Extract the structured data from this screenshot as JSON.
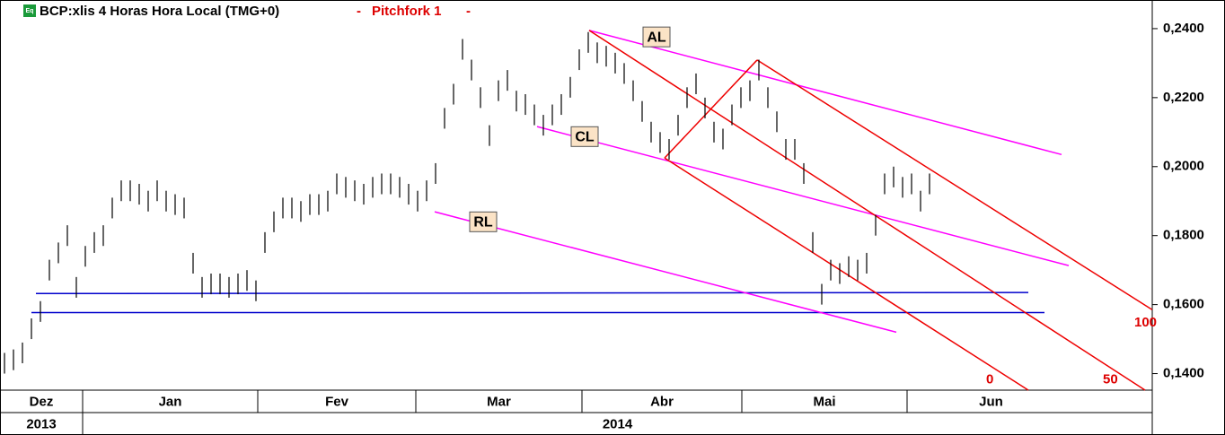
{
  "chart_data": {
    "type": "hilo",
    "icon": "Eq",
    "title": "BCP:xlis 4 Horas Hora Local (TMG+0)",
    "separator": "-",
    "study": "Pitchfork 1",
    "color": "#000000",
    "xlim": [
      0,
      1283
    ],
    "ylim": [
      0.1352,
      0.2483
    ],
    "yticks": [
      {
        "value": 0.14,
        "label": "0,1400"
      },
      {
        "value": 0.16,
        "label": "0,1600"
      },
      {
        "value": 0.18,
        "label": "0,1800"
      },
      {
        "value": 0.2,
        "label": "0,2000"
      },
      {
        "value": 0.22,
        "label": "0,2200"
      },
      {
        "value": 0.24,
        "label": "0,2400"
      }
    ],
    "months": [
      {
        "label": "Dez",
        "start": 0,
        "end": 92
      },
      {
        "label": "Jan",
        "start": 92,
        "end": 287
      },
      {
        "label": "Fev",
        "start": 287,
        "end": 463
      },
      {
        "label": "Mar",
        "start": 463,
        "end": 648
      },
      {
        "label": "Abr",
        "start": 648,
        "end": 826
      },
      {
        "label": "Mai",
        "start": 826,
        "end": 1010
      },
      {
        "label": "Jun",
        "start": 1010,
        "end": 1197
      }
    ],
    "years": [
      {
        "label": "2013",
        "start": 0,
        "end": 92
      },
      {
        "label": "2014",
        "start": 92,
        "end": 1283
      }
    ],
    "x": [
      5,
      15,
      25,
      35,
      45,
      55,
      65,
      75,
      85,
      95,
      105,
      115,
      125,
      135,
      145,
      155,
      165,
      175,
      185,
      195,
      205,
      215,
      225,
      235,
      245,
      255,
      265,
      275,
      285,
      295,
      305,
      315,
      325,
      335,
      345,
      355,
      365,
      375,
      385,
      395,
      405,
      415,
      425,
      435,
      445,
      455,
      465,
      475,
      485,
      495,
      505,
      515,
      525,
      535,
      545,
      555,
      565,
      575,
      585,
      595,
      605,
      615,
      625,
      635,
      645,
      655,
      665,
      675,
      685,
      695,
      705,
      715,
      725,
      735,
      745,
      755,
      765,
      775,
      785,
      795,
      805,
      815,
      825,
      835,
      845,
      855,
      865,
      875,
      885,
      895,
      905,
      915,
      925,
      935,
      945,
      955,
      965,
      975,
      985,
      995,
      1005,
      1015,
      1025,
      1035
    ],
    "high": [
      0.146,
      0.147,
      0.149,
      0.156,
      0.161,
      0.173,
      0.178,
      0.183,
      0.168,
      0.177,
      0.181,
      0.183,
      0.191,
      0.196,
      0.196,
      0.195,
      0.193,
      0.196,
      0.193,
      0.192,
      0.191,
      0.175,
      0.168,
      0.169,
      0.169,
      0.168,
      0.169,
      0.17,
      0.167,
      0.181,
      0.187,
      0.191,
      0.191,
      0.19,
      0.192,
      0.192,
      0.193,
      0.198,
      0.197,
      0.196,
      0.195,
      0.197,
      0.198,
      0.198,
      0.197,
      0.195,
      0.193,
      0.196,
      0.201,
      0.217,
      0.224,
      0.237,
      0.231,
      0.223,
      0.212,
      0.225,
      0.228,
      0.222,
      0.221,
      0.218,
      0.215,
      0.218,
      0.221,
      0.226,
      0.234,
      0.239,
      0.236,
      0.235,
      0.233,
      0.23,
      0.225,
      0.219,
      0.213,
      0.21,
      0.208,
      0.215,
      0.223,
      0.227,
      0.22,
      0.213,
      0.211,
      0.218,
      0.223,
      0.225,
      0.231,
      0.223,
      0.216,
      0.208,
      0.208,
      0.201,
      0.181,
      0.166,
      0.173,
      0.172,
      0.174,
      0.173,
      0.175,
      0.186,
      0.198,
      0.2,
      0.197,
      0.198,
      0.193,
      0.198
    ],
    "low": [
      0.14,
      0.141,
      0.143,
      0.15,
      0.155,
      0.167,
      0.172,
      0.177,
      0.162,
      0.171,
      0.175,
      0.177,
      0.185,
      0.19,
      0.19,
      0.189,
      0.187,
      0.19,
      0.187,
      0.186,
      0.185,
      0.169,
      0.162,
      0.163,
      0.163,
      0.162,
      0.163,
      0.164,
      0.161,
      0.175,
      0.181,
      0.185,
      0.185,
      0.184,
      0.186,
      0.186,
      0.187,
      0.192,
      0.191,
      0.19,
      0.189,
      0.191,
      0.192,
      0.192,
      0.191,
      0.189,
      0.187,
      0.19,
      0.195,
      0.211,
      0.218,
      0.231,
      0.225,
      0.217,
      0.206,
      0.219,
      0.222,
      0.216,
      0.215,
      0.212,
      0.209,
      0.212,
      0.215,
      0.22,
      0.228,
      0.233,
      0.23,
      0.229,
      0.227,
      0.224,
      0.219,
      0.213,
      0.207,
      0.204,
      0.202,
      0.209,
      0.217,
      0.221,
      0.214,
      0.207,
      0.205,
      0.212,
      0.217,
      0.219,
      0.225,
      0.217,
      0.21,
      0.202,
      0.202,
      0.195,
      0.175,
      0.16,
      0.167,
      0.166,
      0.168,
      0.167,
      0.169,
      0.18,
      0.192,
      0.194,
      0.191,
      0.192,
      0.187,
      0.192
    ],
    "lines": [
      {
        "color": "#0000cc",
        "x": [
          40,
          1145
        ],
        "y": [
          0.1632,
          0.1635
        ]
      },
      {
        "color": "#0000cc",
        "x": [
          35,
          1163
        ],
        "y": [
          0.1577,
          0.1577
        ]
      },
      {
        "color": "#ff00ff",
        "x": [
          656,
          1182
        ],
        "y": [
          0.2395,
          0.2035
        ]
      },
      {
        "color": "#ff00ff",
        "x": [
          598,
          1190
        ],
        "y": [
          0.2116,
          0.1713
        ]
      },
      {
        "color": "#ff00ff",
        "x": [
          484,
          998
        ],
        "y": [
          0.1869,
          0.152
        ]
      },
      {
        "color": "#ee0000",
        "x": [
          740,
          843
        ],
        "y": [
          0.2025,
          0.2309
        ]
      },
      {
        "color": "#ee0000",
        "x": [
          740,
          1145
        ],
        "y": [
          0.2025,
          0.1352
        ]
      },
      {
        "color": "#ee0000",
        "x": [
          656,
          1275
        ],
        "y": [
          0.2395,
          0.1352
        ]
      },
      {
        "color": "#ee0000",
        "x": [
          843,
          1283
        ],
        "y": [
          0.2309,
          0.1585
        ]
      }
    ],
    "boxes": [
      {
        "label": "AL",
        "x": 730,
        "y": 0.2376
      },
      {
        "label": "CL",
        "x": 650,
        "y": 0.2087
      },
      {
        "label": "RL",
        "x": 537,
        "y": 0.184
      }
    ],
    "levels": [
      {
        "label": "0",
        "x": 1098,
        "y": 0.1382
      },
      {
        "label": "50",
        "x": 1228,
        "y": 0.1382
      },
      {
        "label": "100",
        "x": 1263,
        "y": 0.1547
      }
    ]
  }
}
